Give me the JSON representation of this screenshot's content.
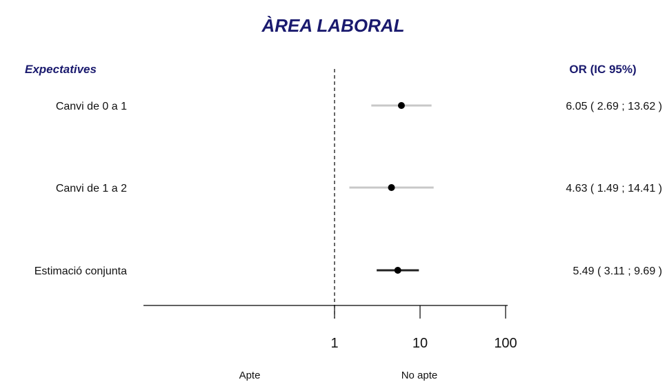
{
  "chart_data": {
    "type": "forest",
    "title": "ÀREA LABORAL",
    "group_header": "Expectatives",
    "estimate_header": "OR (IC 95%)",
    "x_scale": "log10",
    "xlim": [
      0.1,
      100
    ],
    "x_ticks": [
      1,
      10,
      100
    ],
    "x_tick_labels": [
      "1",
      "10",
      "100"
    ],
    "reference_line": 1,
    "direction_labels": {
      "left": "Apte",
      "right": "No apte"
    },
    "rows": [
      {
        "label": "Canvi de 0 a 1",
        "or": 6.05,
        "lower": 2.69,
        "upper": 13.62,
        "ci_text": "6.05 ( 2.69 ; 13.62 )",
        "color": "#c8c8c8"
      },
      {
        "label": "Canvi de 1 a 2",
        "or": 4.63,
        "lower": 1.49,
        "upper": 14.41,
        "ci_text": "4.63 ( 1.49 ; 14.41 )",
        "color": "#c8c8c8"
      },
      {
        "label": "Estimació conjunta",
        "or": 5.49,
        "lower": 3.11,
        "upper": 9.69,
        "ci_text": "5.49 ( 3.11 ; 9.69 )",
        "color": "#222222"
      }
    ]
  }
}
